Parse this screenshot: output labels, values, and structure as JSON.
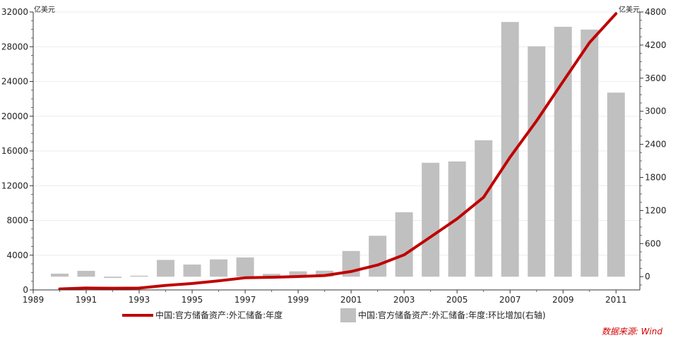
{
  "chart_data": {
    "type": "bar+line",
    "left_unit": "亿美元",
    "right_unit": "亿美元",
    "x_ticks": [
      "1989",
      "1991",
      "1993",
      "1995",
      "1997",
      "1999",
      "2001",
      "2003",
      "2005",
      "2007",
      "2009",
      "2011"
    ],
    "left_ticks": [
      "0",
      "4000",
      "8000",
      "12000",
      "16000",
      "20000",
      "24000",
      "28000",
      "32000"
    ],
    "right_ticks": [
      "0",
      "600",
      "1200",
      "1800",
      "2400",
      "3000",
      "3600",
      "4200",
      "4800"
    ],
    "xlim": [
      1989,
      2011.9
    ],
    "ylim_left": [
      0,
      32000
    ],
    "ylim_right": [
      -240,
      4800
    ],
    "years": [
      1990,
      1991,
      1992,
      1993,
      1994,
      1995,
      1996,
      1997,
      1998,
      1999,
      2000,
      2001,
      2002,
      2003,
      2004,
      2005,
      2006,
      2007,
      2008,
      2009,
      2010,
      2011
    ],
    "series": [
      {
        "name": "中国:官方储备资产:外汇储备:年度",
        "type": "line",
        "axis": "left",
        "color": "#c00000",
        "values": [
          111,
          217,
          194,
          212,
          516,
          736,
          1050,
          1399,
          1450,
          1547,
          1656,
          2122,
          2864,
          4033,
          6099,
          8189,
          10663,
          15282,
          19460,
          23992,
          28473,
          31811
        ]
      },
      {
        "name": "中国:官方储备资产:外汇储备:年度:环比增加(右轴)",
        "type": "bar",
        "axis": "right",
        "color": "#c0c0c0",
        "values": [
          55,
          106,
          -23,
          18,
          304,
          220,
          314,
          349,
          51,
          97,
          109,
          466,
          742,
          1169,
          2066,
          2090,
          2474,
          4619,
          4178,
          4532,
          4481,
          3338
        ]
      }
    ],
    "source_note": "数据来源: Wind",
    "grid": true,
    "legend_position": "bottom"
  }
}
